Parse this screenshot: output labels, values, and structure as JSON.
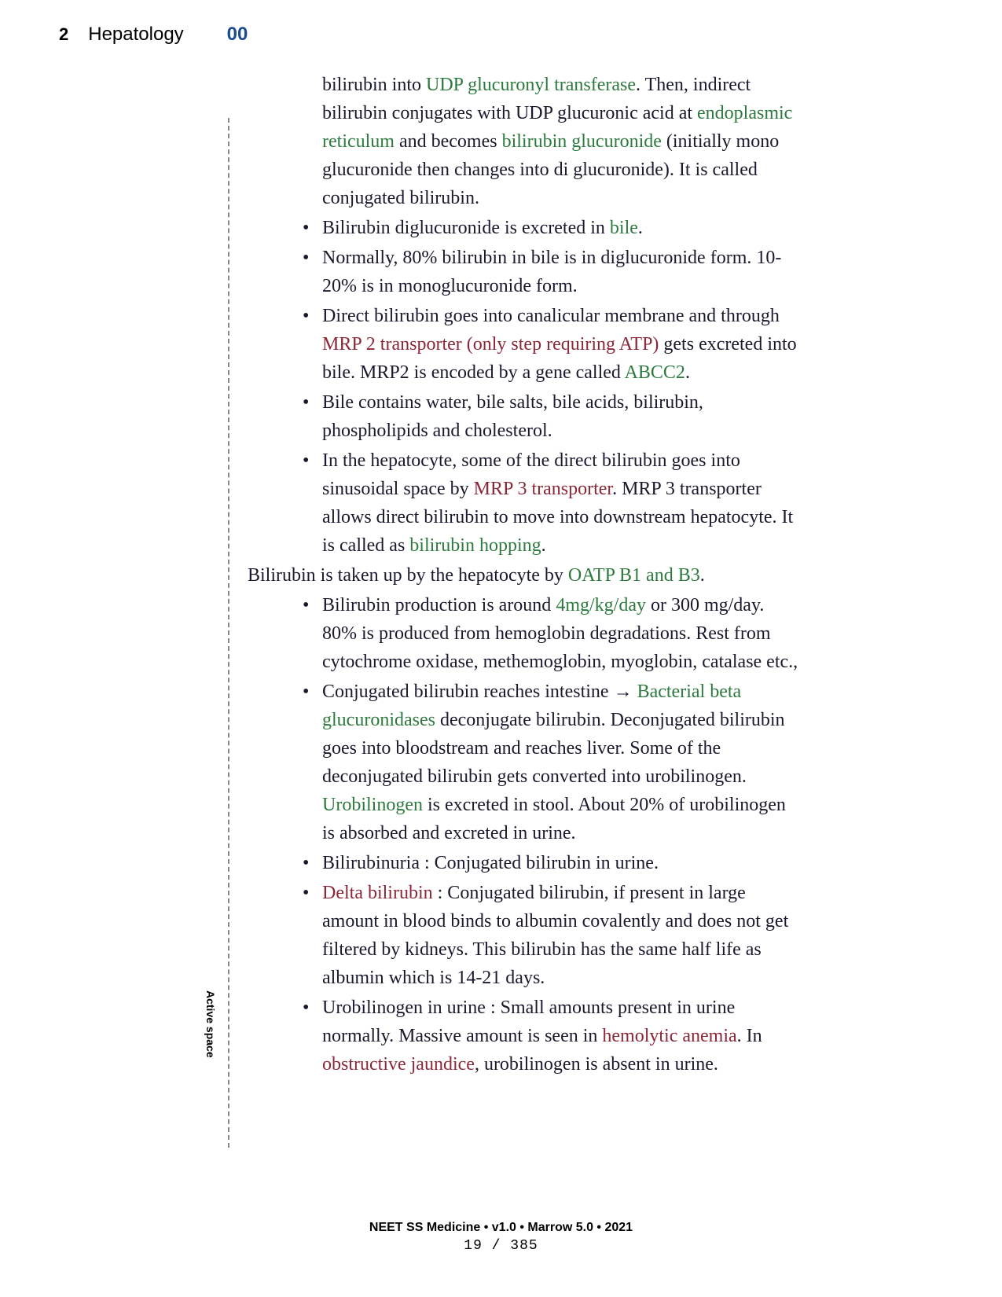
{
  "header": {
    "page": "2",
    "chapter": "Hepatology",
    "topic": "00"
  },
  "margin_label": "Active space",
  "intro": {
    "t1": "bilirubin into ",
    "g1": "UDP glucuronyl transferase",
    "t2": ". Then, indirect bilirubin conjugates with UDP glucuronic acid at ",
    "g2": "endoplasmic reticulum",
    "t3": " and becomes ",
    "g3": "bilirubin glucuronide",
    "t4": " (initially mono glucuronide then changes into di glucuronide). It is called conjugated bilirubin."
  },
  "b1": {
    "t1": "Bilirubin diglucuronide is excreted in ",
    "g1": "bile",
    "t2": "."
  },
  "b2": "Normally, 80% bilirubin in bile is in diglucuronide form. 10-20% is in monoglucuronide form.",
  "b3": {
    "t1": "Direct bilirubin goes into canalicular membrane and through ",
    "r1": "MRP 2 transporter (only step requiring ATP)",
    "t2": " gets excreted into bile. MRP2 is encoded by a gene called ",
    "g1": "ABCC2",
    "t3": "."
  },
  "b4": "Bile contains water, bile salts, bile acids, bilirubin, phospholipids and cholesterol.",
  "b5": {
    "t1": "In the hepatocyte, some of the direct bilirubin goes into sinusoidal space by ",
    "r1": "MRP 3 transporter",
    "t2": ". MRP 3 transporter allows direct bilirubin to move into downstream hepatocyte. It is called as ",
    "g1": "bilirubin hopping",
    "t3": "."
  },
  "out": {
    "t1": "Bilirubin is taken up by the hepatocyte by ",
    "g1": "OATP B1 and B3",
    "t2": "."
  },
  "b6": {
    "t1": "Bilirubin production is around ",
    "g1": "4mg/kg/day",
    "t2": " or 300 mg/day. 80% is produced from hemoglobin degradations. Rest from cytochrome oxidase, methemoglobin, myoglobin, catalase etc.,"
  },
  "b7": {
    "t1": "Conjugated bilirubin reaches intestine ",
    "arrow": "→",
    "t2": " ",
    "g1": "Bacterial beta glucuronidases",
    "t3": " deconjugate bilirubin. Deconjugated bilirubin goes into bloodstream and reaches liver. Some of the deconjugated bilirubin gets converted into urobilinogen. ",
    "g2": "Urobilinogen",
    "t4": " is excreted in stool. About 20% of urobilinogen is absorbed and excreted in urine."
  },
  "b8": "Bilirubinuria : Conjugated bilirubin in urine.",
  "b9": {
    "r1": "Delta bilirubin",
    "t1": " : Conjugated bilirubin, if present in large amount in blood binds to albumin covalently and does not get filtered by kidneys. This bilirubin has the same half life as albumin which is 14-21 days."
  },
  "b10": {
    "t1": "Urobilinogen in urine : Small amounts present in urine normally. Massive amount is seen in ",
    "r1": "hemolytic anemia",
    "t2": ". In ",
    "r2": "obstructive jaundice",
    "t3": ", urobilinogen is absent in urine."
  },
  "footer": {
    "line": "NEET SS Medicine • v1.0 • Marrow 5.0 • 2021",
    "page": "19 / 385"
  }
}
